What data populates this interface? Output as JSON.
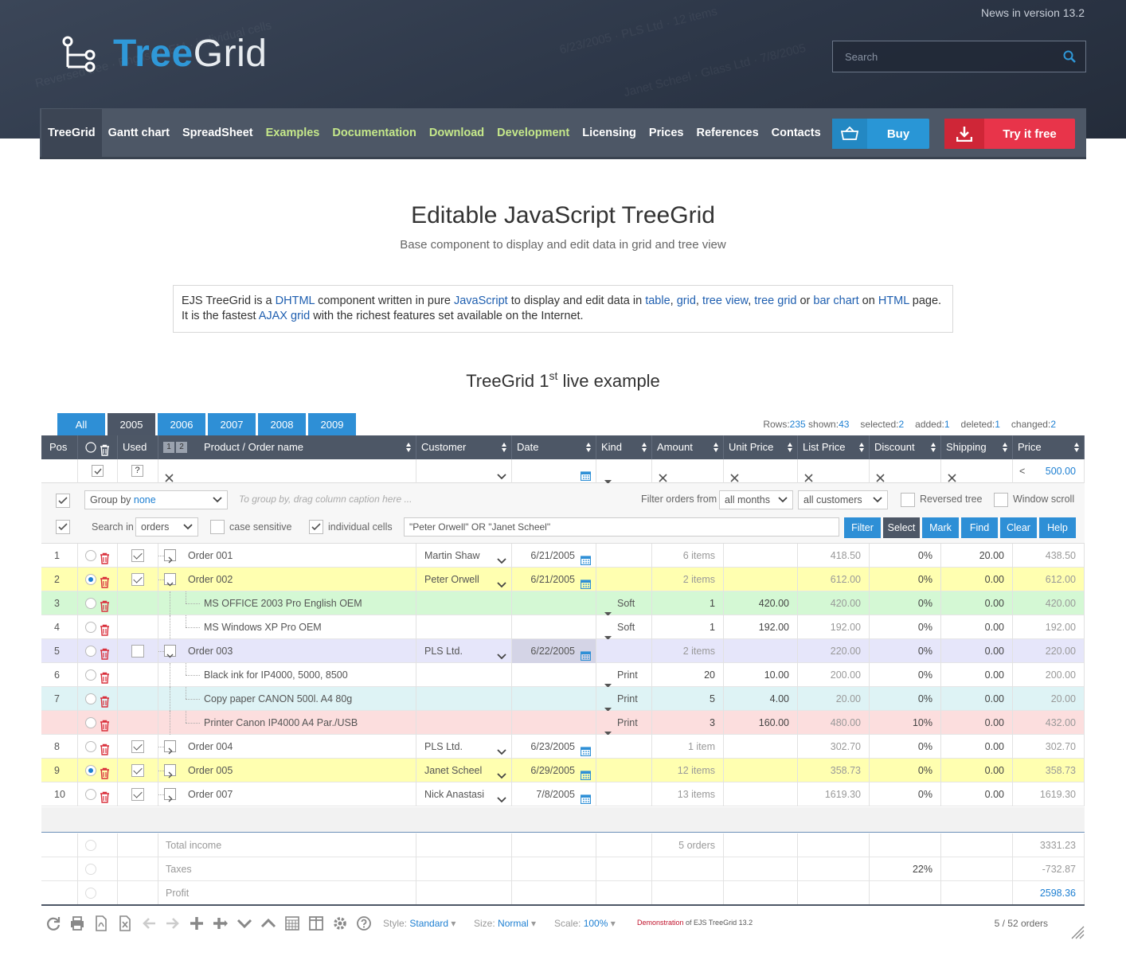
{
  "header": {
    "logo_part1": "Tree",
    "logo_part2": "Grid",
    "news": "News in version 13.2",
    "search_placeholder": "Search"
  },
  "nav": {
    "items": [
      "TreeGrid",
      "Gantt chart",
      "SpreadSheet",
      "Examples",
      "Documentation",
      "Download",
      "Development",
      "Licensing",
      "Prices",
      "References",
      "Contacts"
    ],
    "buy": "Buy",
    "try": "Try it free"
  },
  "page": {
    "title": "Editable JavaScript TreeGrid",
    "subtitle": "Base component to display and edit data in grid and tree view",
    "intro": {
      "t1": "EJS TreeGrid is a ",
      "l1": "DHTML",
      "t2": " component written in pure ",
      "l2": "JavaScript",
      "t3": " to display and edit data in ",
      "l3": "table",
      "t4": ", ",
      "l4": "grid",
      "t5": ", ",
      "l5": "tree view",
      "t6": ", ",
      "l6": "tree grid",
      "t7": " or ",
      "l7": "bar chart",
      "t8": " on ",
      "l8": "HTML",
      "t9": " page.",
      "t10": "It is the fastest ",
      "l10": "AJAX grid",
      "t11": " with the richest features set available on the Internet."
    },
    "example_title_a": "TreeGrid 1",
    "example_title_sup": "st",
    "example_title_b": " live example"
  },
  "tabs": [
    "All",
    "2005",
    "2006",
    "2007",
    "2008",
    "2009"
  ],
  "stats": {
    "rows_label": "Rows:",
    "rows": "235",
    "shown_label": "shown:",
    "shown": "43",
    "selected_label": "selected:",
    "selected": "2",
    "added_label": "added:",
    "added": "1",
    "deleted_label": "deleted:",
    "deleted": "1",
    "changed_label": "changed:",
    "changed": "2"
  },
  "columns": [
    "Pos",
    "",
    "Used",
    "Product / Order name",
    "Customer",
    "Date",
    "Kind",
    "Amount",
    "Unit Price",
    "List Price",
    "Discount",
    "Shipping",
    "Price"
  ],
  "levels": [
    "1",
    "2"
  ],
  "filter": {
    "price_op": "<",
    "price_value": "500.00",
    "used_value": "?"
  },
  "toolbar": {
    "group_by_label": "Group by",
    "group_by_value": "none",
    "group_hint": "To group by, drag column caption here ...",
    "filter_orders_from": "Filter orders from",
    "months": "all months",
    "customers": "all customers",
    "reversed_tree": "Reversed tree",
    "window_scroll": "Window scroll",
    "search_in": "Search in",
    "search_in_value": "orders",
    "case_sensitive": "case sensitive",
    "individual_cells": "individual cells",
    "search_expression": "\"Peter Orwell\" OR \"Janet Scheel\"",
    "buttons": [
      "Filter",
      "Select",
      "Mark",
      "Find",
      "Clear",
      "Help"
    ]
  },
  "rows": [
    {
      "pos": "1",
      "radio": false,
      "used": true,
      "exp": ">",
      "level": 0,
      "name": "Order 001",
      "customer": "Martin Shaw",
      "date": "6/21/2005",
      "kind": "",
      "amount": "6 items",
      "unit": "",
      "list": "418.50",
      "discount": "0%",
      "shipping": "20.00",
      "price": "438.50",
      "bg": "#ffffff"
    },
    {
      "pos": "2",
      "radio": true,
      "used": true,
      "exp": "v",
      "level": 0,
      "name": "Order 002",
      "customer": "Peter Orwell",
      "date": "6/21/2005",
      "kind": "",
      "amount": "2 items",
      "unit": "",
      "list": "612.00",
      "discount": "0%",
      "shipping": "0.00",
      "price": "612.00",
      "bg": "#ffffb0"
    },
    {
      "pos": "3",
      "radio": false,
      "used": null,
      "exp": "",
      "level": 1,
      "name": "MS OFFICE 2003 Pro English OEM",
      "customer": "",
      "date": "",
      "kind": "Soft",
      "amount": "1",
      "unit": "420.00",
      "list": "420.00",
      "discount": "0%",
      "shipping": "0.00",
      "price": "420.00",
      "bg": "#d4f8d4"
    },
    {
      "pos": "4",
      "radio": false,
      "used": null,
      "exp": "",
      "level": 1,
      "name": "MS Windows XP Pro OEM",
      "customer": "",
      "date": "",
      "kind": "Soft",
      "amount": "1",
      "unit": "192.00",
      "list": "192.00",
      "discount": "0%",
      "shipping": "0.00",
      "price": "192.00",
      "bg": "#ffffff"
    },
    {
      "pos": "5",
      "radio": false,
      "used": false,
      "exp": "v",
      "level": 0,
      "name": "Order 003",
      "customer": "PLS Ltd.",
      "date": "6/22/2005",
      "kind": "",
      "amount": "2 items",
      "unit": "",
      "list": "220.00",
      "discount": "0%",
      "shipping": "0.00",
      "price": "220.00",
      "bg": "#e6e6fa"
    },
    {
      "pos": "6",
      "radio": false,
      "used": null,
      "exp": "",
      "level": 1,
      "name": "Black ink for IP4000, 5000, 8500",
      "customer": "",
      "date": "",
      "kind": "Print",
      "amount": "20",
      "unit": "10.00",
      "list": "200.00",
      "discount": "0%",
      "shipping": "0.00",
      "price": "200.00",
      "bg": "#ffffff"
    },
    {
      "pos": "7",
      "radio": false,
      "used": null,
      "exp": "",
      "level": 1,
      "name": "Copy paper CANON 500l. A4 80g",
      "customer": "",
      "date": "",
      "kind": "Print",
      "amount": "5",
      "unit": "4.00",
      "list": "20.00",
      "discount": "0%",
      "shipping": "0.00",
      "price": "20.00",
      "bg": "#def3f5"
    },
    {
      "pos": "",
      "radio": false,
      "used": null,
      "exp": "",
      "level": 1,
      "name": "Printer Canon IP4000 A4 Par./USB",
      "customer": "",
      "date": "",
      "kind": "Print",
      "amount": "3",
      "unit": "160.00",
      "list": "480.00",
      "discount": "10%",
      "shipping": "0.00",
      "price": "432.00",
      "bg": "#fcdede"
    },
    {
      "pos": "8",
      "radio": false,
      "used": true,
      "exp": ">",
      "level": 0,
      "name": "Order 004",
      "customer": "PLS Ltd.",
      "date": "6/23/2005",
      "kind": "",
      "amount": "1 item",
      "unit": "",
      "list": "302.70",
      "discount": "0%",
      "shipping": "0.00",
      "price": "302.70",
      "bg": "#ffffff"
    },
    {
      "pos": "9",
      "radio": true,
      "used": true,
      "exp": ">",
      "level": 0,
      "name": "Order 005",
      "customer": "Janet Scheel",
      "date": "6/29/2005",
      "kind": "",
      "amount": "12 items",
      "unit": "",
      "list": "358.73",
      "discount": "0%",
      "shipping": "0.00",
      "price": "358.73",
      "bg": "#ffffb0"
    },
    {
      "pos": "10",
      "radio": false,
      "used": true,
      "exp": ">",
      "level": 0,
      "name": "Order 007",
      "customer": "Nick Anastasi",
      "date": "7/8/2005",
      "kind": "",
      "amount": "13 items",
      "unit": "",
      "list": "1619.30",
      "discount": "0%",
      "shipping": "0.00",
      "price": "1619.30",
      "bg": "#ffffff"
    }
  ],
  "summary": [
    {
      "label": "Total income",
      "amount": "5 orders",
      "discount": "",
      "price": "3331.23"
    },
    {
      "label": "Taxes",
      "amount": "",
      "discount": "22%",
      "price": "-732.87"
    },
    {
      "label": "Profit",
      "amount": "",
      "discount": "",
      "price": "2598.36"
    }
  ],
  "footer": {
    "style_label": "Style:",
    "style_value": "Standard",
    "size_label": "Size:",
    "size_value": "Normal",
    "scale_label": "Scale:",
    "scale_value": "100%",
    "demo": "Demonstration",
    "demo_of": "of EJS TreeGrid 13.2",
    "pager": "5 / 52 orders"
  },
  "colors": {
    "accent": "#2e8fd6",
    "header": "#4d5766",
    "buy": "#2996d6",
    "try": "#e8344a",
    "nav_green": "#c5e88a"
  }
}
